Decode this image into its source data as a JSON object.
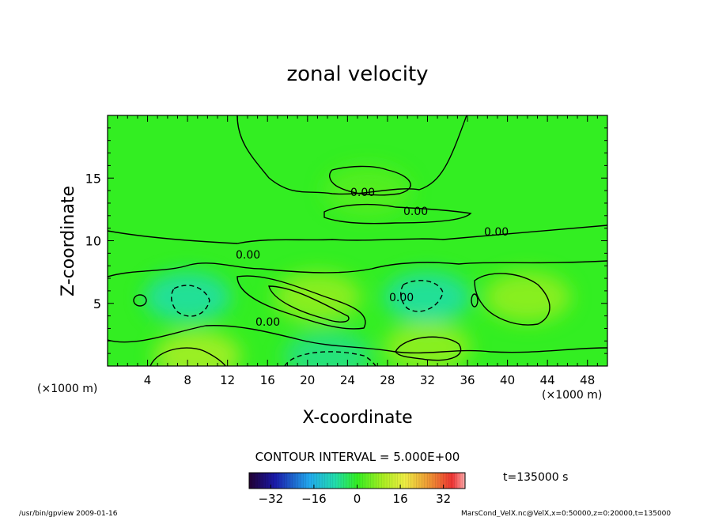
{
  "chart_data": {
    "type": "heatmap",
    "title": "zonal velocity",
    "xlabel": "X-coordinate",
    "ylabel": "Z-coordinate",
    "x_unit": "(×1000 m)",
    "x_unit_right": "(×1000 m)",
    "xlim": [
      0,
      50
    ],
    "ylim": [
      0,
      20
    ],
    "x_ticks": [
      4,
      8,
      12,
      16,
      20,
      24,
      28,
      32,
      36,
      40,
      44,
      48
    ],
    "x_tick_labels": [
      "4",
      "8",
      "12",
      "16",
      "20",
      "24",
      "28",
      "32",
      "36",
      "40",
      "44",
      "48"
    ],
    "y_ticks": [
      5,
      10,
      15
    ],
    "y_tick_labels": [
      "5",
      "10",
      "15"
    ],
    "contour_labels": [
      "0.00",
      "0.00",
      "0.00",
      "0.00",
      "0.00",
      "0.00"
    ],
    "contour_interval_text": "CONTOUR INTERVAL = 5.000E+00",
    "colorbar": {
      "min": -40,
      "max": 40,
      "ticks": [
        -32,
        -16,
        0,
        16,
        32
      ],
      "tick_labels": [
        "−32",
        "−16",
        "0",
        "16",
        "32"
      ]
    },
    "time_label": "t=135000 s",
    "features": [
      {
        "x": 8,
        "z": 5.5,
        "value": -8
      },
      {
        "x": 21,
        "z": 5.5,
        "value": 8
      },
      {
        "x": 32,
        "z": 5.5,
        "value": -8
      },
      {
        "x": 42,
        "z": 5.5,
        "value": 8
      },
      {
        "x": 9,
        "z": 0.8,
        "value": 10
      },
      {
        "x": 32,
        "z": 1.5,
        "value": 8
      },
      {
        "x": 22,
        "z": 0.8,
        "value": -6
      },
      {
        "x": 26,
        "z": 14,
        "value": 3
      }
    ]
  },
  "footer": {
    "left": "/usr/bin/gpview   2009-01-16",
    "right": "MarsCond_VelX.nc@VelX,x=0:50000,z=0:20000,t=135000"
  },
  "colors": {
    "background": "#33ee22",
    "contour": "#000000"
  }
}
